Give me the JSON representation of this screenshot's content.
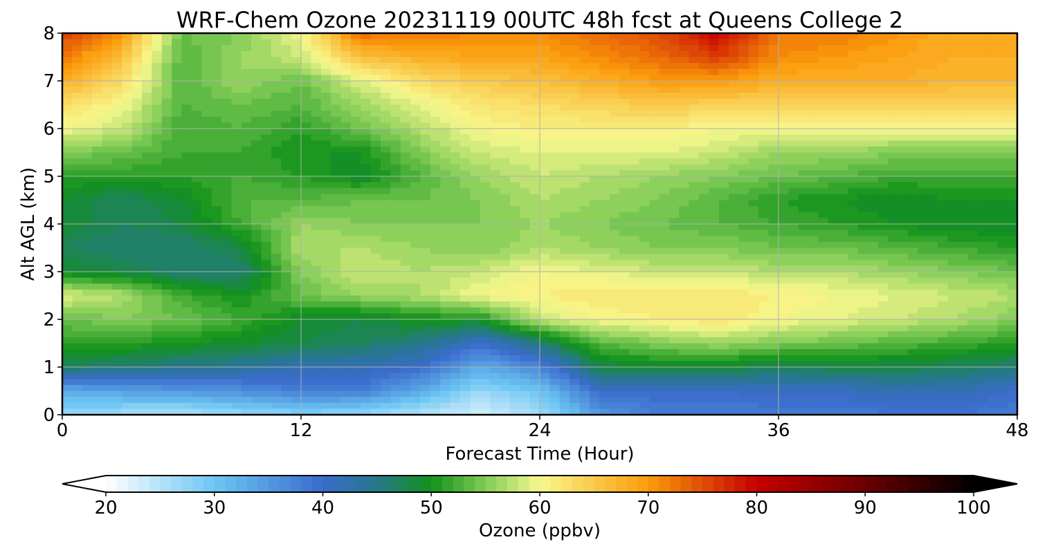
{
  "chart_data": {
    "type": "heatmap",
    "title": "WRF-Chem Ozone  20231119 00UTC 48h fcst at Queens College 2",
    "xlabel": "Forecast Time (Hour)",
    "ylabel": "Alt AGL (km)",
    "xlim": [
      0,
      48
    ],
    "ylim": [
      0,
      8
    ],
    "xticks": [
      0,
      12,
      24,
      36,
      48
    ],
    "yticks": [
      0,
      1,
      2,
      3,
      4,
      5,
      6,
      7,
      8
    ],
    "grid": true,
    "x": [
      0,
      3,
      6,
      9,
      12,
      15,
      18,
      21,
      24,
      27,
      30,
      33,
      36,
      39,
      42,
      45,
      48
    ],
    "y": [
      0,
      0.5,
      1,
      1.5,
      2,
      2.5,
      3,
      3.5,
      4,
      4.5,
      5,
      5.5,
      6,
      6.5,
      7,
      7.5,
      8
    ],
    "z": [
      [
        27,
        26,
        25,
        27,
        28,
        27,
        25,
        23,
        26,
        35,
        38,
        38,
        38,
        38,
        39,
        39,
        38
      ],
      [
        33,
        34,
        35,
        36,
        38,
        38,
        33,
        27,
        30,
        40,
        40,
        40,
        41,
        41,
        42,
        42,
        40
      ],
      [
        47,
        46,
        45,
        44,
        42,
        42,
        40,
        33,
        37,
        48,
        49,
        49,
        47,
        48,
        48,
        47,
        46
      ],
      [
        51,
        51,
        50,
        49,
        48,
        47,
        45,
        40,
        46,
        53,
        55,
        56,
        55,
        54,
        53,
        52,
        51
      ],
      [
        54,
        55,
        54,
        52,
        49,
        48,
        50,
        50,
        58,
        60,
        61,
        62,
        60,
        59,
        58,
        57,
        55
      ],
      [
        59,
        57,
        52,
        50,
        54,
        56,
        57,
        60,
        61,
        62,
        62,
        62,
        61,
        60,
        59,
        58,
        57
      ],
      [
        49,
        48,
        46,
        46,
        55,
        58,
        57,
        58,
        60,
        59,
        58,
        58,
        57,
        57,
        56,
        55,
        54
      ],
      [
        47,
        46,
        46,
        48,
        57,
        57,
        56,
        55,
        57,
        56,
        55,
        55,
        54,
        54,
        53,
        52,
        51
      ],
      [
        49,
        47,
        48,
        52,
        56,
        55,
        55,
        55,
        56,
        55,
        54,
        53,
        52,
        51,
        50,
        49,
        49
      ],
      [
        49,
        47,
        49,
        53,
        53,
        54,
        54,
        55,
        57,
        56,
        55,
        53,
        51,
        50,
        49,
        50,
        50
      ],
      [
        51,
        51,
        51,
        52,
        51,
        49,
        53,
        56,
        58,
        57,
        56,
        55,
        54,
        53,
        52,
        52,
        52
      ],
      [
        55,
        54,
        52,
        52,
        50,
        50,
        55,
        58,
        59,
        59,
        59,
        58,
        56,
        56,
        55,
        55,
        55
      ],
      [
        60,
        58,
        52,
        53,
        51,
        54,
        57,
        60,
        61,
        61,
        61,
        60,
        60,
        60,
        60,
        60,
        60
      ],
      [
        63,
        60,
        53,
        54,
        53,
        56,
        59,
        62,
        63,
        64,
        65,
        64,
        64,
        64,
        64,
        64,
        64
      ],
      [
        68,
        63,
        53,
        56,
        54,
        59,
        63,
        65,
        66,
        68,
        70,
        70,
        68,
        68,
        68,
        67,
        67
      ],
      [
        72,
        66,
        53,
        56,
        58,
        66,
        68,
        69,
        69,
        71,
        73,
        76,
        71,
        70,
        69,
        68,
        68
      ],
      [
        76,
        70,
        54,
        55,
        60,
        73,
        72,
        71,
        71,
        73,
        75,
        80,
        72,
        72,
        70,
        68,
        68
      ]
    ],
    "colorbar": {
      "label": "Ozone  (ppbv)",
      "min": 20,
      "max": 100,
      "ticks": [
        "20",
        "30",
        "40",
        "50",
        "60",
        "70",
        "80",
        "90",
        "100"
      ],
      "extend": "both",
      "stops": [
        [
          20,
          "#ffffff"
        ],
        [
          30,
          "#6cc5f3"
        ],
        [
          40,
          "#3a6bcc"
        ],
        [
          45,
          "#26788a"
        ],
        [
          50,
          "#11921a"
        ],
        [
          55,
          "#82cc57"
        ],
        [
          60,
          "#f8f88d"
        ],
        [
          70,
          "#fb9b0a"
        ],
        [
          80,
          "#c60000"
        ],
        [
          90,
          "#6a0000"
        ],
        [
          100,
          "#000000"
        ]
      ]
    }
  }
}
